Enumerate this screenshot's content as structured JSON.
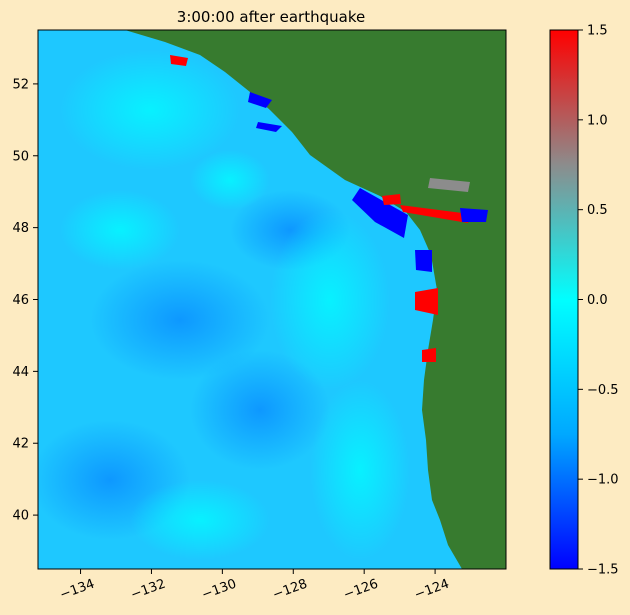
{
  "chart_data": {
    "type": "heatmap",
    "title": "3:00:00 after earthquake",
    "xlabel": "",
    "ylabel": "",
    "xlim": [
      -135.2,
      -122.0
    ],
    "ylim": [
      38.5,
      53.5
    ],
    "x_ticks": [
      -134,
      -132,
      -130,
      -128,
      -126,
      -124
    ],
    "x_tick_labels": [
      "−134",
      "−132",
      "−130",
      "−128",
      "−126",
      "−124"
    ],
    "y_ticks": [
      40,
      42,
      44,
      46,
      48,
      50,
      52
    ],
    "y_tick_labels": [
      "40",
      "42",
      "44",
      "46",
      "48",
      "50",
      "52"
    ],
    "colorbar": {
      "min": -1.5,
      "max": 1.5,
      "ticks": [
        -1.5,
        -1.0,
        -0.5,
        0.0,
        0.5,
        1.0,
        1.5
      ],
      "tick_labels": [
        "−1.5",
        "−1.0",
        "−0.5",
        "0.0",
        "0.5",
        "1.0",
        "1.5"
      ],
      "colors": [
        "#0000ff",
        "#00b2ff",
        "#00ffff",
        "#8c8c8c",
        "#ff0000"
      ]
    },
    "land_color": "#377b2f",
    "ocean_base_color": "#22ccff",
    "colors": {
      "figure_background": "#fdebc2",
      "wave_positive": "#ff0000",
      "wave_negative": "#0000ff"
    }
  }
}
